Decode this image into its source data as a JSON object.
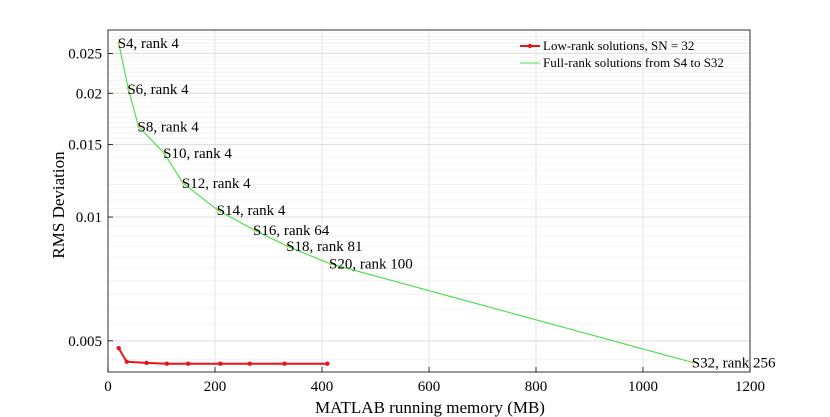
{
  "chart_data": {
    "type": "line",
    "xlabel": "MATLAB running memory (MB)",
    "ylabel": "RMS Deviation",
    "xlim": [
      0,
      1200
    ],
    "ylim": [
      0.0042,
      0.0285
    ],
    "yscale": "log",
    "x_ticks": [
      0,
      200,
      400,
      600,
      800,
      1000,
      1200
    ],
    "y_ticks": [
      0.005,
      0.01,
      0.015,
      0.02,
      0.025
    ],
    "grid": true,
    "legend_position": "top-right",
    "series": [
      {
        "name": "Low-rank solutions, SN = 32",
        "color": "#e8141b",
        "marker": "dot",
        "x": [
          20,
          35,
          72,
          110,
          150,
          210,
          265,
          330,
          410
        ],
        "y": [
          0.0048,
          0.00445,
          0.00442,
          0.0044,
          0.0044,
          0.0044,
          0.0044,
          0.0044,
          0.0044
        ]
      },
      {
        "name": "Full-rank solutions from S4 to S32",
        "color": "#44dd44",
        "marker": "none",
        "x": [
          20,
          38,
          57,
          105,
          140,
          205,
          273,
          335,
          415,
          1093
        ],
        "y": [
          0.0265,
          0.0205,
          0.0166,
          0.0143,
          0.0121,
          0.0104,
          0.0093,
          0.0085,
          0.0077,
          0.00443
        ],
        "point_labels": [
          "S4, rank 4",
          "S6, rank 4",
          "S8, rank 4",
          "S10, rank 4",
          "S12, rank 4",
          "S14, rank 4",
          "S16, rank 64",
          "S18, rank 81",
          "S20, rank 100",
          "S32, rank 256"
        ]
      }
    ]
  }
}
